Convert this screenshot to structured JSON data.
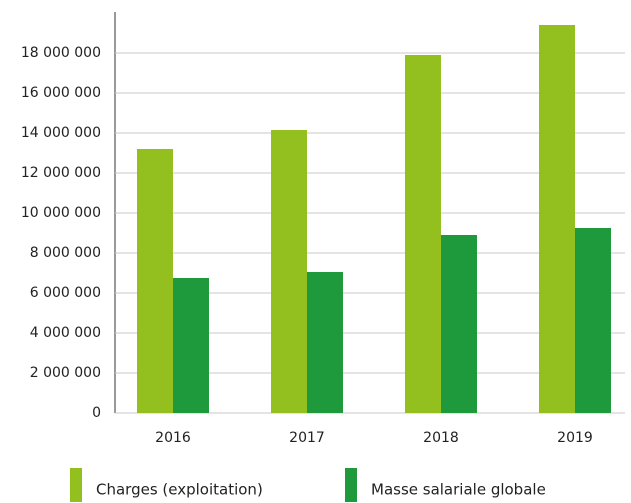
{
  "chart_data": {
    "type": "bar",
    "categories": [
      "2016",
      "2017",
      "2018",
      "2019"
    ],
    "series": [
      {
        "name": "Charges (exploitation)",
        "color": "#93c01f",
        "values": [
          13200000,
          14150000,
          17900000,
          19400000
        ]
      },
      {
        "name": "Masse salariale globale",
        "color": "#1e9a3c",
        "values": [
          6750000,
          7050000,
          8900000,
          9250000
        ]
      }
    ],
    "ylim": [
      0,
      20000000
    ],
    "yticks": [
      0,
      {
        "value": 2000000,
        "label": "2 000 000"
      },
      {
        "value": 4000000,
        "label": "4 000 000"
      },
      {
        "value": 6000000,
        "label": "6 000 000"
      },
      {
        "value": 8000000,
        "label": "8 000 000"
      },
      {
        "value": 10000000,
        "label": "10 000 000"
      },
      {
        "value": 12000000,
        "label": "12 000 000"
      },
      {
        "value": 14000000,
        "label": "14 000 000"
      },
      {
        "value": 16000000,
        "label": "16 000 000"
      },
      {
        "value": 18000000,
        "label": "18 000 000"
      }
    ],
    "grid": true
  }
}
